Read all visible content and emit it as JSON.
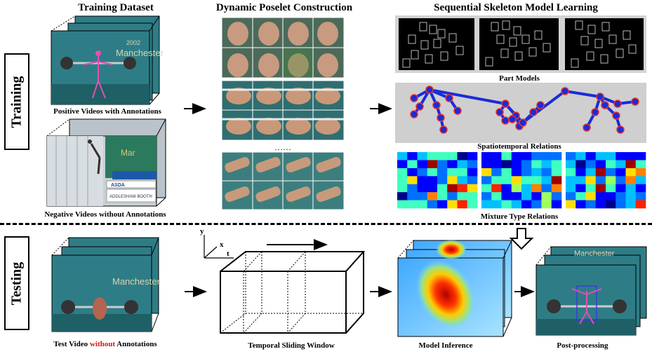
{
  "headers": {
    "training_dataset": "Training Dataset",
    "poselet": "Dynamic Poselet Construction",
    "skeleton": "Sequential Skeleton Model Learning"
  },
  "side_labels": {
    "training": "Training",
    "testing": "Testing"
  },
  "captions": {
    "positive": "Positive Videos with Annotations",
    "negative": "Negative Videos without Annotations",
    "part_models": "Part Models",
    "spatiotemporal": "Spatiotemporal Relations",
    "mixture": "Mixture Type Relations",
    "test_video_a": "Test Video ",
    "test_video_b": "without",
    "test_video_c": " Annotations",
    "sliding_window": "Temporal Sliding Window",
    "inference": "Model Inference",
    "postprocessing": "Post-processing",
    "ellipsis": "……"
  },
  "video_text": {
    "manchester": "Manchester",
    "year": "2002",
    "advert_a": "ASDA",
    "advert_b": "ADDLESHAW BOOTH"
  },
  "axes": {
    "y": "y",
    "x": "x",
    "t": "t"
  },
  "colors": {
    "frame_bg": "#2e7d86",
    "red_text": "#d21414",
    "skeleton_blue": "#1a2cd8",
    "skeleton_ring": "#e8322a",
    "panel_gray": "#cfcfcf"
  }
}
